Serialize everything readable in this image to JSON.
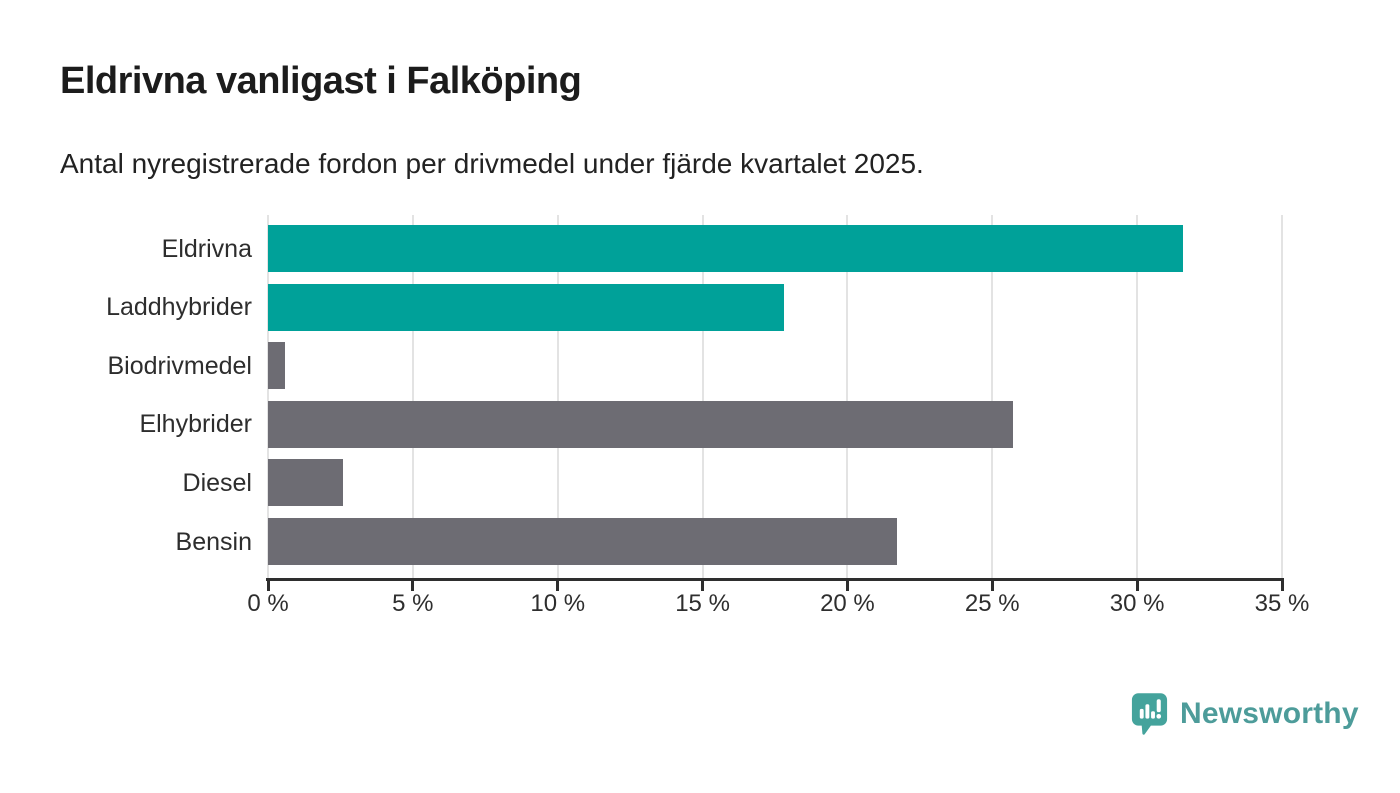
{
  "header": {
    "title": "Eldrivna vanligast i Falköping",
    "subtitle": "Antal nyregistrerade fordon per drivmedel under fjärde kvartalet 2025."
  },
  "chart_data": {
    "type": "bar",
    "orientation": "horizontal",
    "title": "Eldrivna vanligast i Falköping",
    "subtitle": "Antal nyregistrerade fordon per drivmedel under fjärde kvartalet 2025.",
    "categories": [
      "Eldrivna",
      "Laddhybrider",
      "Biodrivmedel",
      "Elhybrider",
      "Diesel",
      "Bensin"
    ],
    "values": [
      31.6,
      17.8,
      0.6,
      25.7,
      2.6,
      21.7
    ],
    "unit": "%",
    "bar_colors": [
      "#00a199",
      "#00a199",
      "#6d6c73",
      "#6d6c73",
      "#6d6c73",
      "#6d6c73"
    ],
    "highlight_color": "#00a199",
    "default_color": "#6d6c73",
    "xlim": [
      0,
      35
    ],
    "x_ticks": [
      0,
      5,
      10,
      15,
      20,
      25,
      30,
      35
    ],
    "x_tick_labels": [
      "0 %",
      "5 %",
      "10 %",
      "15 %",
      "20 %",
      "25 %",
      "30 %",
      "35 %"
    ],
    "grid": "vertical",
    "legend": "none"
  },
  "branding": {
    "logo_text": "Newsworthy",
    "logo_text_color": "#4d9c9a",
    "logo_mark_color": "#44a39c"
  },
  "colors": {
    "axis": "#2e2e2e",
    "gridline": "#e3e3e3",
    "title_text": "#1c1c1c",
    "label_text": "#2d2d2d"
  }
}
